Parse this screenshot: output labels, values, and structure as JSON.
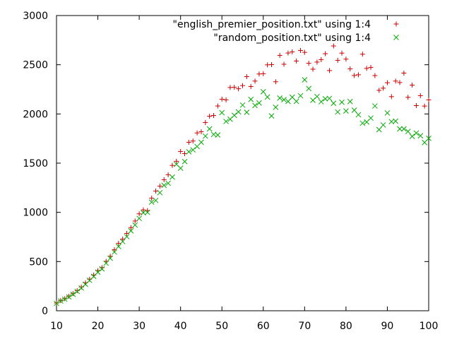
{
  "chart_data": {
    "type": "scatter",
    "xlim": [
      10,
      100
    ],
    "ylim": [
      0,
      3000
    ],
    "x_ticks": [
      10,
      20,
      30,
      40,
      50,
      60,
      70,
      80,
      90,
      100
    ],
    "y_ticks": [
      0,
      500,
      1000,
      1500,
      2000,
      2500,
      3000
    ],
    "grid": false,
    "legend_position": "top-right",
    "series": [
      {
        "name": "\"english_premier_position.txt\" using 1:4",
        "marker": "plus",
        "color": "#cc0000",
        "points": [
          [
            10,
            79
          ],
          [
            11,
            103
          ],
          [
            12,
            123
          ],
          [
            13,
            148
          ],
          [
            14,
            174
          ],
          [
            15,
            204
          ],
          [
            16,
            241
          ],
          [
            17,
            284
          ],
          [
            18,
            321
          ],
          [
            19,
            363
          ],
          [
            20,
            408
          ],
          [
            21,
            438
          ],
          [
            22,
            502
          ],
          [
            23,
            554
          ],
          [
            24,
            620
          ],
          [
            25,
            685
          ],
          [
            26,
            728
          ],
          [
            27,
            786
          ],
          [
            28,
            845
          ],
          [
            29,
            912
          ],
          [
            30,
            985
          ],
          [
            31,
            1025
          ],
          [
            32,
            1018
          ],
          [
            33,
            1144
          ],
          [
            34,
            1216
          ],
          [
            35,
            1266
          ],
          [
            36,
            1332
          ],
          [
            37,
            1382
          ],
          [
            38,
            1477
          ],
          [
            39,
            1519
          ],
          [
            40,
            1619
          ],
          [
            41,
            1597
          ],
          [
            42,
            1712
          ],
          [
            43,
            1725
          ],
          [
            44,
            1807
          ],
          [
            45,
            1819
          ],
          [
            46,
            1913
          ],
          [
            47,
            1977
          ],
          [
            48,
            1984
          ],
          [
            49,
            2081
          ],
          [
            50,
            2150
          ],
          [
            51,
            2143
          ],
          [
            52,
            2269
          ],
          [
            53,
            2271
          ],
          [
            54,
            2256
          ],
          [
            55,
            2288
          ],
          [
            56,
            2379
          ],
          [
            57,
            2279
          ],
          [
            58,
            2334
          ],
          [
            59,
            2406
          ],
          [
            60,
            2409
          ],
          [
            61,
            2499
          ],
          [
            62,
            2501
          ],
          [
            63,
            2327
          ],
          [
            64,
            2595
          ],
          [
            65,
            2505
          ],
          [
            66,
            2619
          ],
          [
            67,
            2631
          ],
          [
            68,
            2538
          ],
          [
            69,
            2645
          ],
          [
            70,
            2626
          ],
          [
            71,
            2515
          ],
          [
            72,
            2455
          ],
          [
            73,
            2527
          ],
          [
            74,
            2552
          ],
          [
            75,
            2612
          ],
          [
            76,
            2441
          ],
          [
            77,
            2691
          ],
          [
            78,
            2545
          ],
          [
            79,
            2618
          ],
          [
            80,
            2557
          ],
          [
            81,
            2458
          ],
          [
            82,
            2391
          ],
          [
            83,
            2398
          ],
          [
            84,
            2607
          ],
          [
            85,
            2463
          ],
          [
            86,
            2473
          ],
          [
            87,
            2390
          ],
          [
            88,
            2240
          ],
          [
            89,
            2262
          ],
          [
            90,
            2317
          ],
          [
            91,
            2176
          ],
          [
            92,
            2334
          ],
          [
            93,
            2319
          ],
          [
            94,
            2415
          ],
          [
            95,
            2169
          ],
          [
            96,
            2293
          ],
          [
            97,
            2085
          ],
          [
            98,
            2186
          ],
          [
            99,
            2080
          ],
          [
            100,
            2143
          ]
        ]
      },
      {
        "name": "\"random_position.txt\" using 1:4",
        "marker": "cross",
        "color": "#00aa00",
        "points": [
          [
            10,
            75
          ],
          [
            11,
            99
          ],
          [
            12,
            118
          ],
          [
            13,
            141
          ],
          [
            14,
            168
          ],
          [
            15,
            197
          ],
          [
            16,
            231
          ],
          [
            17,
            269
          ],
          [
            18,
            309
          ],
          [
            19,
            349
          ],
          [
            20,
            392
          ],
          [
            21,
            425
          ],
          [
            22,
            483
          ],
          [
            23,
            534
          ],
          [
            24,
            596
          ],
          [
            25,
            653
          ],
          [
            26,
            703
          ],
          [
            27,
            753
          ],
          [
            28,
            812
          ],
          [
            29,
            871
          ],
          [
            30,
            938
          ],
          [
            31,
            996
          ],
          [
            32,
            1000
          ],
          [
            33,
            1104
          ],
          [
            34,
            1121
          ],
          [
            35,
            1200
          ],
          [
            36,
            1275
          ],
          [
            37,
            1296
          ],
          [
            38,
            1358
          ],
          [
            39,
            1488
          ],
          [
            40,
            1449
          ],
          [
            41,
            1516
          ],
          [
            42,
            1616
          ],
          [
            43,
            1635
          ],
          [
            44,
            1669
          ],
          [
            45,
            1712
          ],
          [
            46,
            1775
          ],
          [
            47,
            1848
          ],
          [
            48,
            1792
          ],
          [
            49,
            1786
          ],
          [
            50,
            2013
          ],
          [
            51,
            1924
          ],
          [
            52,
            1947
          ],
          [
            53,
            1986
          ],
          [
            54,
            2021
          ],
          [
            55,
            2090
          ],
          [
            56,
            2017
          ],
          [
            57,
            2148
          ],
          [
            58,
            2086
          ],
          [
            59,
            2112
          ],
          [
            60,
            2226
          ],
          [
            61,
            2172
          ],
          [
            62,
            1980
          ],
          [
            63,
            2068
          ],
          [
            64,
            2161
          ],
          [
            65,
            2145
          ],
          [
            66,
            2127
          ],
          [
            67,
            2170
          ],
          [
            68,
            2128
          ],
          [
            69,
            2185
          ],
          [
            70,
            2347
          ],
          [
            71,
            2258
          ],
          [
            72,
            2139
          ],
          [
            73,
            2177
          ],
          [
            74,
            2124
          ],
          [
            75,
            2154
          ],
          [
            76,
            2158
          ],
          [
            77,
            2108
          ],
          [
            78,
            2020
          ],
          [
            79,
            2119
          ],
          [
            80,
            2030
          ],
          [
            81,
            2126
          ],
          [
            82,
            2038
          ],
          [
            83,
            1992
          ],
          [
            84,
            1906
          ],
          [
            85,
            1918
          ],
          [
            86,
            1958
          ],
          [
            87,
            2081
          ],
          [
            88,
            1841
          ],
          [
            89,
            1888
          ],
          [
            90,
            2010
          ],
          [
            91,
            1922
          ],
          [
            92,
            1927
          ],
          [
            93,
            1848
          ],
          [
            94,
            1848
          ],
          [
            95,
            1822
          ],
          [
            96,
            1772
          ],
          [
            97,
            1806
          ],
          [
            98,
            1778
          ],
          [
            99,
            1710
          ],
          [
            100,
            1752
          ]
        ]
      }
    ]
  }
}
